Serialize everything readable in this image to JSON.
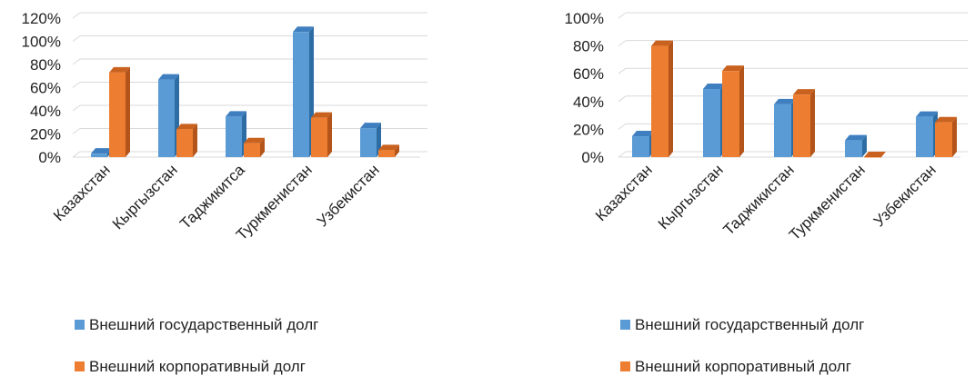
{
  "colors": {
    "series_0": {
      "front": "#5b9bd5",
      "side": "#2e6da4",
      "top": "#3f7fbf"
    },
    "series_1": {
      "front": "#ed7d31",
      "side": "#b3541a",
      "top": "#c9621f"
    },
    "grid": "#d9d9d9"
  },
  "chart_data": [
    {
      "type": "bar",
      "categories": [
        "Казахстан",
        "Кыргызстан",
        "Таджикитса",
        "Туркменистан",
        "Узбекистан"
      ],
      "series": [
        {
          "name": "Внешний государственный долг",
          "values": [
            3,
            67,
            35,
            108,
            25
          ]
        },
        {
          "name": "Внешний корпоративный долг",
          "values": [
            73,
            24,
            12,
            34,
            6
          ]
        }
      ],
      "ylim": [
        0,
        120
      ],
      "y_ticks": [
        "0%",
        "20%",
        "40%",
        "60%",
        "80%",
        "100%",
        "120%"
      ],
      "grid": true,
      "legend": "bottom"
    },
    {
      "type": "bar",
      "categories": [
        "Казахстан",
        "Кыргызстан",
        "Таджикистан",
        "Туркменистан",
        "Узбекистан"
      ],
      "series": [
        {
          "name": "Внешний государственный долг",
          "values": [
            15,
            49,
            38,
            12,
            29
          ]
        },
        {
          "name": "Внешний корпоративный долг",
          "values": [
            80,
            62,
            45,
            0,
            25
          ]
        }
      ],
      "ylim": [
        0,
        100
      ],
      "y_ticks": [
        "0%",
        "20%",
        "40%",
        "60%",
        "80%",
        "100%"
      ],
      "grid": true,
      "legend": "bottom"
    }
  ]
}
